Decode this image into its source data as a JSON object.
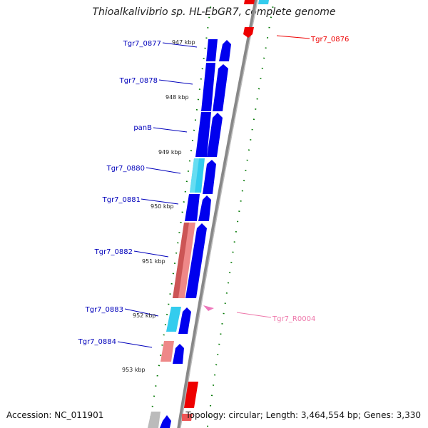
{
  "title": "Thioalkalivibrio sp. HL-EbGR7, complete genome",
  "accession": "Accession: NC_011901",
  "info": "Topology: circular; Length: 3,464,554 bp; Genes: 3,330",
  "colors": {
    "cds": "#0000ee",
    "cds_light": "#33ccee",
    "cds_pink": "#ee8888",
    "rna": "#ee77bb",
    "forward": "#ee0000",
    "backbone": "#888888",
    "tick": "#007700",
    "label_cds": "#0000bb",
    "label_rna": "#ee77aa"
  },
  "kbp_marks": [
    "947 kbp",
    "948 kbp",
    "949 kbp",
    "950 kbp",
    "951 kbp",
    "952 kbp",
    "953 kbp"
  ],
  "gene_labels": [
    {
      "name": "Tgr7_0877",
      "color_key": "label_cds"
    },
    {
      "name": "Tgr7_0878",
      "color_key": "label_cds"
    },
    {
      "name": "panB",
      "color_key": "label_cds"
    },
    {
      "name": "Tgr7_0880",
      "color_key": "label_cds"
    },
    {
      "name": "Tgr7_0881",
      "color_key": "label_cds"
    },
    {
      "name": "Tgr7_0882",
      "color_key": "label_cds"
    },
    {
      "name": "Tgr7_0883",
      "color_key": "label_cds"
    },
    {
      "name": "Tgr7_0884",
      "color_key": "label_cds"
    },
    {
      "name": "Tgr7_0876",
      "color_key": "forward"
    },
    {
      "name": "Tgr7_R0004",
      "color_key": "label_rna"
    }
  ]
}
